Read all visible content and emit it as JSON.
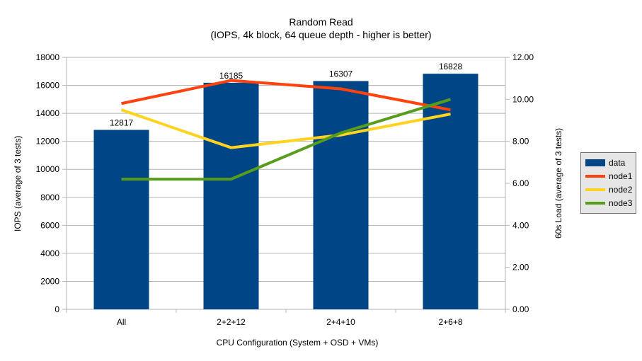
{
  "chart_data": {
    "type": "bar",
    "title": "Random Read",
    "subtitle": "(IOPS, 4k block, 64 queue depth - higher is better)",
    "xlabel": "CPU Configuration (System + OSD + VMs)",
    "ylabel_left": "IOPS (average of 3 tests)",
    "ylabel_right": "60s Load (average of 3 tests)",
    "categories": [
      "All",
      "2+2+12",
      "2+4+10",
      "2+6+8"
    ],
    "series": [
      {
        "name": "data",
        "type": "bar",
        "axis": "left",
        "color": "#004586",
        "values": [
          12817,
          16185,
          16307,
          16828
        ],
        "value_labels": [
          "12817",
          "16185",
          "16307",
          "16828"
        ]
      },
      {
        "name": "node1",
        "type": "line",
        "axis": "right",
        "color": "#ff420e",
        "values": [
          9.8,
          10.9,
          10.5,
          9.5
        ]
      },
      {
        "name": "node2",
        "type": "line",
        "axis": "right",
        "color": "#ffd320",
        "values": [
          9.5,
          7.7,
          8.3,
          9.3
        ]
      },
      {
        "name": "node3",
        "type": "line",
        "axis": "right",
        "color": "#579d1c",
        "values": [
          6.2,
          6.2,
          8.4,
          10.0
        ]
      }
    ],
    "y_left_axis": {
      "min": 0,
      "max": 18000,
      "step": 2000,
      "tick_labels": [
        "0",
        "2000",
        "4000",
        "6000",
        "8000",
        "10000",
        "12000",
        "14000",
        "16000",
        "18000"
      ]
    },
    "y_right_axis": {
      "min": 0,
      "max": 12,
      "step": 2,
      "tick_labels": [
        "0.00",
        "2.00",
        "4.00",
        "6.00",
        "8.00",
        "10.00",
        "12.00"
      ]
    },
    "legend": {
      "position": "right",
      "items": [
        "data",
        "node1",
        "node2",
        "node3"
      ]
    },
    "grid": {
      "horizontal": true,
      "vertical": false
    },
    "colors": {
      "grid": "#b3b3b3",
      "axis": "#b3b3b3",
      "text": "#000000",
      "legend_bg": "#e6e6e6",
      "legend_border": "#737373",
      "background": "#ffffff"
    }
  }
}
